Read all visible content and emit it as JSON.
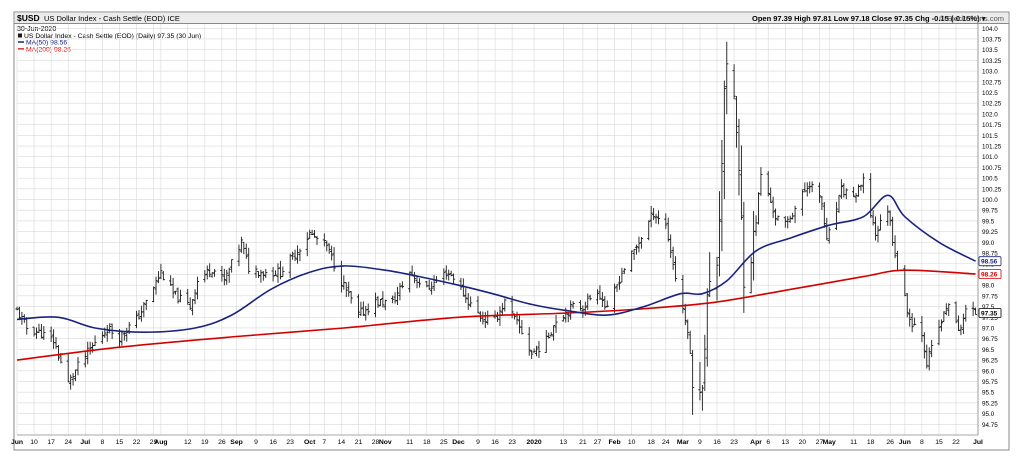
{
  "header": {
    "symbol": "$USD",
    "name": "US Dollar Index - Cash Settle (EOD) ICE",
    "date": "30-Jun-2020",
    "quote": "Open 97.39  High 97.81  Low 97.18  Close 97.35  Chg -0.15 (-0.15%) ▾",
    "credit": "© StockCharts.com"
  },
  "legend": {
    "price_label": "US Dollar Index - Cash Settle (EOD) (Daily) 97.35 (30 Jun)",
    "ma50_label": "MA(50) 98.56",
    "ma200_label": "MA(200) 98.26"
  },
  "colors": {
    "price": "#1a1a1a",
    "ma50": "#1a237e",
    "ma200": "#d40000",
    "grid": "#d9d9d9",
    "frame": "#8a8a8a"
  },
  "chart_data": {
    "type": "line",
    "subtype": "ohlc-bars",
    "ylim": [
      94.5,
      104.1
    ],
    "y_ticks": [
      94.75,
      95.0,
      95.25,
      95.5,
      95.75,
      96.0,
      96.25,
      96.5,
      96.75,
      97.0,
      97.25,
      97.5,
      97.75,
      98.0,
      98.25,
      98.5,
      98.75,
      99.0,
      99.25,
      99.5,
      99.75,
      100.0,
      100.25,
      100.5,
      100.75,
      101.0,
      101.25,
      101.5,
      101.75,
      102.0,
      102.25,
      102.5,
      102.75,
      103.0,
      103.25,
      103.5,
      103.75,
      104.0
    ],
    "y_tick_labels": [
      "94.75",
      "95.0",
      "95.25",
      "95.5",
      "95.75",
      "96.0",
      "96.25",
      "96.5",
      "96.75",
      "97.0",
      "97.25",
      "97.5",
      "97.75",
      "98.0",
      "98.25",
      "98.5",
      "98.75",
      "99.0",
      "99.25",
      "99.5",
      "99.75",
      "100.0",
      "100.25",
      "100.5",
      "100.75",
      "101.0",
      "101.25",
      "101.5",
      "101.75",
      "102.0",
      "102.25",
      "102.5",
      "102.75",
      "103.0",
      "103.25",
      "103.5",
      "103.75",
      "104.0"
    ],
    "x_range": [
      "2019-06-03",
      "2020-07-01"
    ],
    "x_tick_labels": [
      {
        "date": "2019-06-03",
        "label": "Jun",
        "bold": true
      },
      {
        "date": "2019-06-10",
        "label": "10"
      },
      {
        "date": "2019-06-17",
        "label": "17"
      },
      {
        "date": "2019-06-24",
        "label": "24"
      },
      {
        "date": "2019-07-01",
        "label": "Jul",
        "bold": true
      },
      {
        "date": "2019-07-08",
        "label": "8"
      },
      {
        "date": "2019-07-15",
        "label": "15"
      },
      {
        "date": "2019-07-22",
        "label": "22"
      },
      {
        "date": "2019-07-29",
        "label": "29"
      },
      {
        "date": "2019-08-01",
        "label": "Aug",
        "bold": true
      },
      {
        "date": "2019-08-12",
        "label": "12"
      },
      {
        "date": "2019-08-19",
        "label": "19"
      },
      {
        "date": "2019-08-26",
        "label": "26"
      },
      {
        "date": "2019-09-01",
        "label": "Sep",
        "bold": true
      },
      {
        "date": "2019-09-09",
        "label": "9"
      },
      {
        "date": "2019-09-16",
        "label": "16"
      },
      {
        "date": "2019-09-23",
        "label": "23"
      },
      {
        "date": "2019-10-01",
        "label": "Oct",
        "bold": true
      },
      {
        "date": "2019-10-07",
        "label": "7"
      },
      {
        "date": "2019-10-14",
        "label": "14"
      },
      {
        "date": "2019-10-21",
        "label": "21"
      },
      {
        "date": "2019-10-28",
        "label": "28"
      },
      {
        "date": "2019-11-01",
        "label": "Nov",
        "bold": true
      },
      {
        "date": "2019-11-11",
        "label": "11"
      },
      {
        "date": "2019-11-18",
        "label": "18"
      },
      {
        "date": "2019-11-25",
        "label": "25"
      },
      {
        "date": "2019-12-01",
        "label": "Dec",
        "bold": true
      },
      {
        "date": "2019-12-09",
        "label": "9"
      },
      {
        "date": "2019-12-16",
        "label": "16"
      },
      {
        "date": "2019-12-23",
        "label": "23"
      },
      {
        "date": "2020-01-01",
        "label": "2020",
        "bold": true
      },
      {
        "date": "2020-01-13",
        "label": "13"
      },
      {
        "date": "2020-01-21",
        "label": "21"
      },
      {
        "date": "2020-01-27",
        "label": "27"
      },
      {
        "date": "2020-02-03",
        "label": "Feb",
        "bold": true
      },
      {
        "date": "2020-02-10",
        "label": "10"
      },
      {
        "date": "2020-02-18",
        "label": "18"
      },
      {
        "date": "2020-02-24",
        "label": "24"
      },
      {
        "date": "2020-03-02",
        "label": "Mar",
        "bold": true
      },
      {
        "date": "2020-03-09",
        "label": "9"
      },
      {
        "date": "2020-03-16",
        "label": "16"
      },
      {
        "date": "2020-03-23",
        "label": "23"
      },
      {
        "date": "2020-04-01",
        "label": "Apr",
        "bold": true
      },
      {
        "date": "2020-04-06",
        "label": "6"
      },
      {
        "date": "2020-04-13",
        "label": "13"
      },
      {
        "date": "2020-04-20",
        "label": "20"
      },
      {
        "date": "2020-04-27",
        "label": "27"
      },
      {
        "date": "2020-05-01",
        "label": "May",
        "bold": true
      },
      {
        "date": "2020-05-11",
        "label": "11"
      },
      {
        "date": "2020-05-18",
        "label": "18"
      },
      {
        "date": "2020-05-26",
        "label": "26"
      },
      {
        "date": "2020-06-01",
        "label": "Jun",
        "bold": true
      },
      {
        "date": "2020-06-08",
        "label": "8"
      },
      {
        "date": "2020-06-15",
        "label": "15"
      },
      {
        "date": "2020-06-22",
        "label": "22"
      },
      {
        "date": "2020-07-01",
        "label": "Jul",
        "bold": true
      }
    ],
    "price_anchors": [
      [
        "2019-06-03",
        97.4
      ],
      [
        "2019-06-07",
        97.0
      ],
      [
        "2019-06-12",
        96.9
      ],
      [
        "2019-06-18",
        96.7
      ],
      [
        "2019-06-24",
        95.7
      ],
      [
        "2019-06-28",
        96.1
      ],
      [
        "2019-07-03",
        96.5
      ],
      [
        "2019-07-10",
        97.0
      ],
      [
        "2019-07-15",
        96.8
      ],
      [
        "2019-07-22",
        97.2
      ],
      [
        "2019-07-26",
        97.6
      ],
      [
        "2019-08-01",
        98.3
      ],
      [
        "2019-08-06",
        97.8
      ],
      [
        "2019-08-13",
        97.5
      ],
      [
        "2019-08-16",
        98.1
      ],
      [
        "2019-08-22",
        98.4
      ],
      [
        "2019-08-27",
        98.1
      ],
      [
        "2019-09-03",
        99.0
      ],
      [
        "2019-09-06",
        98.4
      ],
      [
        "2019-09-12",
        98.3
      ],
      [
        "2019-09-19",
        98.3
      ],
      [
        "2019-09-26",
        98.8
      ],
      [
        "2019-10-01",
        99.2
      ],
      [
        "2019-10-08",
        98.9
      ],
      [
        "2019-10-14",
        98.1
      ],
      [
        "2019-10-21",
        97.3
      ],
      [
        "2019-10-28",
        97.6
      ],
      [
        "2019-11-04",
        97.6
      ],
      [
        "2019-11-11",
        98.3
      ],
      [
        "2019-11-18",
        97.9
      ],
      [
        "2019-11-26",
        98.3
      ],
      [
        "2019-11-29",
        98.2
      ],
      [
        "2019-12-04",
        97.7
      ],
      [
        "2019-12-11",
        97.2
      ],
      [
        "2019-12-16",
        97.2
      ],
      [
        "2019-12-20",
        97.6
      ],
      [
        "2019-12-27",
        96.9
      ],
      [
        "2019-12-31",
        96.4
      ],
      [
        "2020-01-06",
        96.7
      ],
      [
        "2020-01-10",
        97.2
      ],
      [
        "2020-01-17",
        97.5
      ],
      [
        "2020-01-21",
        97.5
      ],
      [
        "2020-01-27",
        97.9
      ],
      [
        "2020-01-31",
        97.4
      ],
      [
        "2020-02-06",
        98.3
      ],
      [
        "2020-02-12",
        98.9
      ],
      [
        "2020-02-19",
        99.7
      ],
      [
        "2020-02-24",
        99.4
      ],
      [
        "2020-02-28",
        98.2
      ],
      [
        "2020-03-03",
        97.2
      ],
      [
        "2020-03-06",
        96.0
      ],
      [
        "2020-03-09",
        95.2
      ],
      [
        "2020-03-12",
        97.6
      ],
      [
        "2020-03-16",
        98.6
      ],
      [
        "2020-03-18",
        101.0
      ],
      [
        "2020-03-19",
        102.8
      ],
      [
        "2020-03-23",
        102.5
      ],
      [
        "2020-03-27",
        98.4
      ],
      [
        "2020-03-31",
        99.0
      ],
      [
        "2020-04-03",
        100.6
      ],
      [
        "2020-04-09",
        99.6
      ],
      [
        "2020-04-13",
        99.4
      ],
      [
        "2020-04-17",
        99.8
      ],
      [
        "2020-04-23",
        100.4
      ],
      [
        "2020-04-28",
        99.9
      ],
      [
        "2020-04-30",
        99.0
      ],
      [
        "2020-05-06",
        100.2
      ],
      [
        "2020-05-12",
        100.1
      ],
      [
        "2020-05-15",
        100.4
      ],
      [
        "2020-05-20",
        99.2
      ],
      [
        "2020-05-25",
        99.8
      ],
      [
        "2020-05-29",
        98.4
      ],
      [
        "2020-06-03",
        97.2
      ],
      [
        "2020-06-08",
        96.9
      ],
      [
        "2020-06-10",
        96.2
      ],
      [
        "2020-06-15",
        97.0
      ],
      [
        "2020-06-19",
        97.6
      ],
      [
        "2020-06-23",
        96.9
      ],
      [
        "2020-06-26",
        97.4
      ],
      [
        "2020-06-30",
        97.35
      ]
    ],
    "ma50": [
      [
        "2019-06-03",
        97.2
      ],
      [
        "2019-06-20",
        97.25
      ],
      [
        "2019-07-05",
        97.0
      ],
      [
        "2019-07-25",
        96.9
      ],
      [
        "2019-08-15",
        97.0
      ],
      [
        "2019-08-30",
        97.3
      ],
      [
        "2019-09-15",
        97.9
      ],
      [
        "2019-10-01",
        98.3
      ],
      [
        "2019-10-15",
        98.45
      ],
      [
        "2019-11-01",
        98.35
      ],
      [
        "2019-11-15",
        98.2
      ],
      [
        "2019-12-01",
        98.0
      ],
      [
        "2019-12-15",
        97.8
      ],
      [
        "2019-12-31",
        97.55
      ],
      [
        "2020-01-15",
        97.4
      ],
      [
        "2020-01-31",
        97.3
      ],
      [
        "2020-02-15",
        97.5
      ],
      [
        "2020-03-01",
        97.8
      ],
      [
        "2020-03-10",
        97.8
      ],
      [
        "2020-03-20",
        98.1
      ],
      [
        "2020-04-01",
        98.8
      ],
      [
        "2020-04-15",
        99.1
      ],
      [
        "2020-05-01",
        99.4
      ],
      [
        "2020-05-15",
        99.6
      ],
      [
        "2020-05-25",
        100.1
      ],
      [
        "2020-06-01",
        99.6
      ],
      [
        "2020-06-15",
        99.0
      ],
      [
        "2020-06-30",
        98.56
      ]
    ],
    "ma200": [
      [
        "2019-06-03",
        96.25
      ],
      [
        "2019-07-15",
        96.55
      ],
      [
        "2019-09-01",
        96.8
      ],
      [
        "2019-10-15",
        97.0
      ],
      [
        "2019-12-01",
        97.25
      ],
      [
        "2020-01-15",
        97.35
      ],
      [
        "2020-02-15",
        97.45
      ],
      [
        "2020-03-15",
        97.6
      ],
      [
        "2020-04-15",
        97.9
      ],
      [
        "2020-05-15",
        98.2
      ],
      [
        "2020-06-01",
        98.35
      ],
      [
        "2020-06-30",
        98.26
      ]
    ],
    "last_price_tag": "97.35",
    "ma50_tag": "98.56",
    "ma200_tag": "98.26"
  }
}
